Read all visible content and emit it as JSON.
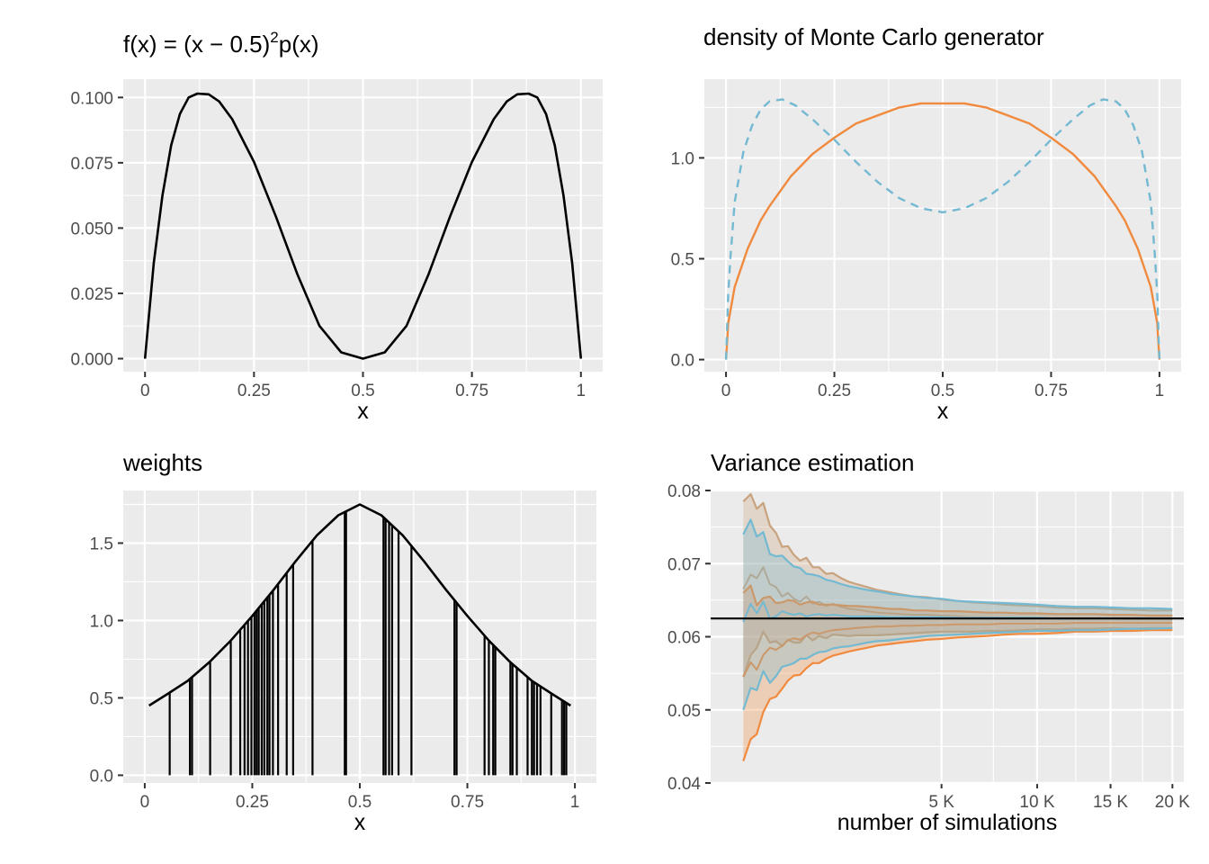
{
  "colors": {
    "blue": "#74b9d2",
    "orange": "#f08a3e",
    "tan": "#c9a27e",
    "line": "#000000",
    "panel": "#ebebeb"
  },
  "chart_data": [
    {
      "id": "p1",
      "type": "line",
      "title_parts": {
        "a": "f(x) = (x − 0.5)",
        "sup": "2",
        "b": "p(x)"
      },
      "xlabel": "x",
      "ylabel": "",
      "xlim": [
        -0.05,
        1.05
      ],
      "ylim": [
        -0.005,
        0.107
      ],
      "x_ticks": [
        0,
        0.25,
        0.5,
        0.75,
        1
      ],
      "x_tick_labels": [
        "0",
        "0.25",
        "0.5",
        "0.75",
        "1"
      ],
      "y_ticks": [
        0,
        0.025,
        0.05,
        0.075,
        0.1
      ],
      "y_tick_labels": [
        "0.000",
        "0.025",
        "0.050",
        "0.075",
        "0.100"
      ],
      "series": [
        {
          "style": "solid",
          "color": "#000000",
          "x": [
            0,
            0.02,
            0.04,
            0.06,
            0.08,
            0.1,
            0.12,
            0.146,
            0.17,
            0.2,
            0.25,
            0.3,
            0.35,
            0.4,
            0.45,
            0.5,
            0.55,
            0.6,
            0.65,
            0.7,
            0.75,
            0.8,
            0.83,
            0.854,
            0.88,
            0.9,
            0.92,
            0.94,
            0.96,
            0.98,
            1
          ],
          "y": [
            0,
            0.0365,
            0.0625,
            0.0817,
            0.0937,
            0.1,
            0.1015,
            0.1012,
            0.0985,
            0.0917,
            0.0753,
            0.0545,
            0.0321,
            0.0126,
            0.0024,
            0,
            0.0024,
            0.0126,
            0.0321,
            0.0545,
            0.0753,
            0.0917,
            0.0985,
            0.1012,
            0.1015,
            0.1,
            0.0937,
            0.0817,
            0.0625,
            0.0365,
            0
          ]
        }
      ]
    },
    {
      "id": "p2",
      "type": "line",
      "title": "density of Monte Carlo generator",
      "xlabel": "x",
      "ylabel": "",
      "xlim": [
        -0.05,
        1.05
      ],
      "ylim": [
        -0.06,
        1.39
      ],
      "x_ticks": [
        0,
        0.25,
        0.5,
        0.75,
        1
      ],
      "x_tick_labels": [
        "0",
        "0.25",
        "0.5",
        "0.75",
        "1"
      ],
      "y_ticks": [
        0,
        0.5,
        1
      ],
      "y_tick_labels": [
        "0.0",
        "0.5",
        "1.0"
      ],
      "series": [
        {
          "style": "solid",
          "color": "#f08a3e",
          "x": [
            0,
            0.005,
            0.02,
            0.05,
            0.08,
            0.1,
            0.15,
            0.2,
            0.25,
            0.3,
            0.35,
            0.4,
            0.45,
            0.5,
            0.55,
            0.6,
            0.65,
            0.7,
            0.75,
            0.8,
            0.85,
            0.9,
            0.92,
            0.95,
            0.98,
            0.995,
            1
          ],
          "y": [
            0,
            0.18,
            0.36,
            0.55,
            0.69,
            0.76,
            0.91,
            1.02,
            1.1,
            1.17,
            1.21,
            1.25,
            1.27,
            1.27,
            1.27,
            1.25,
            1.21,
            1.17,
            1.1,
            1.02,
            0.91,
            0.76,
            0.69,
            0.55,
            0.36,
            0.18,
            0
          ]
        },
        {
          "style": "dashed",
          "color": "#74b9d2",
          "x": [
            0,
            0.005,
            0.01,
            0.02,
            0.04,
            0.06,
            0.08,
            0.1,
            0.13,
            0.16,
            0.2,
            0.25,
            0.3,
            0.35,
            0.4,
            0.45,
            0.5,
            0.55,
            0.6,
            0.65,
            0.7,
            0.75,
            0.8,
            0.84,
            0.87,
            0.9,
            0.92,
            0.94,
            0.96,
            0.98,
            0.99,
            0.995,
            1
          ],
          "y": [
            0,
            0.32,
            0.5,
            0.78,
            1.03,
            1.16,
            1.24,
            1.28,
            1.29,
            1.26,
            1.19,
            1.09,
            0.98,
            0.88,
            0.8,
            0.75,
            0.73,
            0.75,
            0.8,
            0.88,
            0.98,
            1.09,
            1.19,
            1.26,
            1.29,
            1.28,
            1.24,
            1.16,
            1.03,
            0.78,
            0.5,
            0.32,
            0
          ]
        }
      ]
    },
    {
      "id": "p3",
      "type": "line",
      "title": "weights",
      "xlabel": "x",
      "ylabel": "",
      "xlim": [
        -0.05,
        1.05
      ],
      "ylim": [
        -0.05,
        1.84
      ],
      "x_ticks": [
        0,
        0.25,
        0.5,
        0.75,
        1
      ],
      "x_tick_labels": [
        "0",
        "0.25",
        "0.5",
        "0.75",
        "1"
      ],
      "y_ticks": [
        0,
        0.5,
        1,
        1.5
      ],
      "y_tick_labels": [
        "0.0",
        "0.5",
        "1.0",
        "1.5"
      ],
      "curve_x": [
        0.01,
        0.05,
        0.1,
        0.15,
        0.2,
        0.25,
        0.3,
        0.35,
        0.4,
        0.45,
        0.5,
        0.55,
        0.6,
        0.65,
        0.7,
        0.75,
        0.8,
        0.85,
        0.9,
        0.95,
        0.99
      ],
      "curve_y": [
        0.45,
        0.52,
        0.61,
        0.73,
        0.87,
        1.03,
        1.2,
        1.38,
        1.55,
        1.68,
        1.75,
        1.68,
        1.55,
        1.38,
        1.2,
        1.03,
        0.87,
        0.73,
        0.61,
        0.52,
        0.45
      ],
      "spikes_x": [
        0.058,
        0.105,
        0.11,
        0.152,
        0.2,
        0.222,
        0.232,
        0.24,
        0.248,
        0.255,
        0.26,
        0.265,
        0.272,
        0.278,
        0.285,
        0.29,
        0.298,
        0.31,
        0.33,
        0.345,
        0.39,
        0.465,
        0.468,
        0.555,
        0.56,
        0.568,
        0.575,
        0.59,
        0.62,
        0.72,
        0.725,
        0.79,
        0.8,
        0.81,
        0.815,
        0.85,
        0.855,
        0.865,
        0.89,
        0.9,
        0.905,
        0.912,
        0.92,
        0.945,
        0.97,
        0.975,
        0.98
      ]
    },
    {
      "id": "p4",
      "type": "line",
      "title": "Variance estimation",
      "xlabel": "number of simulations",
      "ylabel": "",
      "x_scale": "sqrt",
      "xlim": [
        0,
        21000
      ],
      "ylim": [
        0.04,
        0.08
      ],
      "x_ticks": [
        5000,
        10000,
        15000,
        20000
      ],
      "x_tick_labels": [
        "5 K",
        "10 K",
        "15 K",
        "20 K"
      ],
      "y_ticks": [
        0.04,
        0.05,
        0.06,
        0.07,
        0.08
      ],
      "y_tick_labels": [
        "0.04",
        "0.05",
        "0.06",
        "0.07",
        "0.08"
      ],
      "hline": 0.0625,
      "x": [
        100,
        150,
        200,
        260,
        330,
        400,
        480,
        560,
        650,
        750,
        860,
        980,
        1100,
        1250,
        1400,
        1600,
        1800,
        2000,
        2300,
        2600,
        3000,
        3400,
        3900,
        4400,
        5000,
        5700,
        6400,
        7200,
        8100,
        9000,
        10000,
        11200,
        12500,
        13800,
        15200,
        16600,
        18100,
        20000
      ],
      "bands": [
        {
          "name_color": "tan",
          "fill": "#c9a27e",
          "edge": "#c9a27e",
          "mid": [
            0.0665,
            0.0685,
            0.068,
            0.0695,
            0.0672,
            0.0668,
            0.0655,
            0.066,
            0.0652,
            0.0648,
            0.0655,
            0.0645,
            0.0648,
            0.0642,
            0.0645,
            0.0641,
            0.0638,
            0.0637,
            0.0635,
            0.0633,
            0.0632,
            0.0631,
            0.063,
            0.063,
            0.0629,
            0.0628,
            0.0627,
            0.0627,
            0.0626,
            0.0626,
            0.0626,
            0.0625,
            0.0625,
            0.0625,
            0.0625,
            0.0624,
            0.0624,
            0.0624
          ],
          "half": [
            0.012,
            0.011,
            0.0095,
            0.0088,
            0.008,
            0.0074,
            0.0068,
            0.0064,
            0.006,
            0.0056,
            0.0053,
            0.005,
            0.0047,
            0.0044,
            0.0042,
            0.0039,
            0.0037,
            0.0035,
            0.0033,
            0.0031,
            0.0029,
            0.0027,
            0.0025,
            0.0024,
            0.0022,
            0.0021,
            0.002,
            0.0019,
            0.0018,
            0.0017,
            0.0016,
            0.0015,
            0.0014,
            0.0014,
            0.0013,
            0.0013,
            0.0012,
            0.0012
          ]
        },
        {
          "name_color": "orange",
          "fill": "#f08a3e",
          "edge": "#f08a3e",
          "mid": [
            0.0545,
            0.0565,
            0.0555,
            0.0575,
            0.0585,
            0.0582,
            0.0588,
            0.0595,
            0.0598,
            0.0596,
            0.0602,
            0.0606,
            0.0604,
            0.0607,
            0.0609,
            0.061,
            0.0611,
            0.0612,
            0.0613,
            0.0614,
            0.0614,
            0.0615,
            0.0615,
            0.0616,
            0.0616,
            0.0617,
            0.0617,
            0.0617,
            0.0618,
            0.0618,
            0.0618,
            0.0618,
            0.0619,
            0.0619,
            0.0619,
            0.0619,
            0.0619,
            0.0619
          ],
          "half": [
            0.0115,
            0.0105,
            0.0088,
            0.0078,
            0.007,
            0.0064,
            0.0059,
            0.0055,
            0.0051,
            0.0048,
            0.0045,
            0.0042,
            0.004,
            0.0037,
            0.0035,
            0.0033,
            0.0031,
            0.003,
            0.0028,
            0.0026,
            0.0024,
            0.0023,
            0.0021,
            0.002,
            0.0019,
            0.0018,
            0.0017,
            0.0016,
            0.0015,
            0.0014,
            0.0014,
            0.0013,
            0.0012,
            0.0012,
            0.0011,
            0.0011,
            0.001,
            0.001
          ]
        },
        {
          "name_color": "blue",
          "fill": "#74b9d2",
          "edge": "#74b9d2",
          "mid": [
            0.062,
            0.0645,
            0.0632,
            0.0648,
            0.0625,
            0.0628,
            0.0635,
            0.0632,
            0.063,
            0.0632,
            0.0628,
            0.063,
            0.0631,
            0.0629,
            0.063,
            0.0629,
            0.0628,
            0.0628,
            0.0628,
            0.0628,
            0.0627,
            0.0627,
            0.0627,
            0.0627,
            0.0627,
            0.0626,
            0.0626,
            0.0626,
            0.0626,
            0.0626,
            0.0626,
            0.0625,
            0.0625,
            0.0625,
            0.0625,
            0.0625,
            0.0625,
            0.0625
          ],
          "half": [
            0.012,
            0.0115,
            0.0105,
            0.0095,
            0.0088,
            0.0082,
            0.0076,
            0.0071,
            0.0066,
            0.0062,
            0.0058,
            0.0055,
            0.0052,
            0.0049,
            0.0046,
            0.0043,
            0.0041,
            0.0039,
            0.0036,
            0.0034,
            0.0032,
            0.003,
            0.0028,
            0.0026,
            0.0025,
            0.0023,
            0.0022,
            0.0021,
            0.002,
            0.0019,
            0.0018,
            0.0017,
            0.0016,
            0.0016,
            0.0015,
            0.0014,
            0.0014,
            0.0013
          ]
        }
      ]
    }
  ]
}
